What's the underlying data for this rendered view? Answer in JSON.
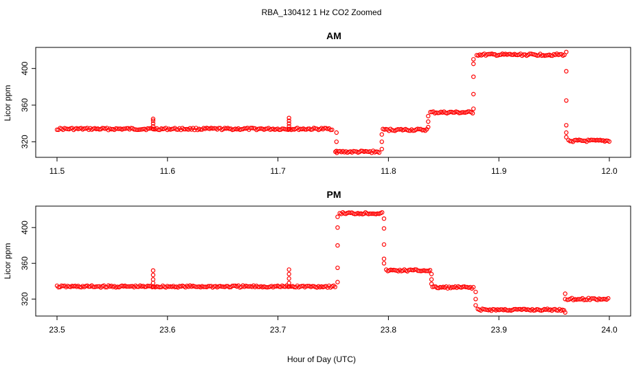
{
  "title": "RBA_130412  1 Hz CO2 Zoomed",
  "xlabel": "Hour of Day (UTC)",
  "colors": {
    "points": "#ff0000",
    "axes": "#000000"
  },
  "chart_data": [
    {
      "type": "scatter",
      "title": "AM",
      "ylabel": "Licor ppm",
      "xlim": [
        11.5,
        12.0
      ],
      "ylim": [
        303,
        423
      ],
      "x_ticks": [
        "11.5",
        "11.6",
        "11.7",
        "11.8",
        "11.9",
        "12.0"
      ],
      "y_ticks": [
        "320",
        "360",
        "400"
      ],
      "segments": [
        {
          "x": [
            11.5,
            11.75
          ],
          "y": 334
        },
        {
          "x": [
            11.752,
            11.792
          ],
          "y": 309
        },
        {
          "x": [
            11.795,
            11.835
          ],
          "y": 333
        },
        {
          "x": [
            11.838,
            11.877
          ],
          "y": 352
        },
        {
          "x": [
            11.88,
            11.96
          ],
          "y": 415
        },
        {
          "x": [
            11.963,
            12.0
          ],
          "y": 321
        }
      ],
      "spikes": [
        {
          "x": 11.587,
          "y": [
            334,
            337,
            340,
            343,
            345
          ]
        },
        {
          "x": 11.71,
          "y": [
            334,
            337,
            340,
            343,
            346
          ]
        },
        {
          "x": 11.753,
          "y": [
            330,
            320,
            310
          ]
        },
        {
          "x": 11.794,
          "y": [
            312,
            320,
            328
          ]
        },
        {
          "x": 11.836,
          "y": [
            336,
            342,
            348
          ]
        },
        {
          "x": 11.877,
          "y": [
            356,
            372,
            391,
            405,
            410
          ]
        },
        {
          "x": 11.961,
          "y": [
            418,
            397,
            365,
            338,
            330,
            325
          ]
        }
      ]
    },
    {
      "type": "scatter",
      "title": "PM",
      "ylabel": "Licor ppm",
      "xlim": [
        23.5,
        24.0
      ],
      "ylim": [
        301,
        424
      ],
      "x_ticks": [
        "23.5",
        "23.6",
        "23.7",
        "23.8",
        "23.9",
        "24.0"
      ],
      "y_ticks": [
        "320",
        "360",
        "400"
      ],
      "segments": [
        {
          "x": [
            23.5,
            23.753
          ],
          "y": 334
        },
        {
          "x": [
            23.756,
            23.795
          ],
          "y": 416
        },
        {
          "x": [
            23.798,
            23.838
          ],
          "y": 352
        },
        {
          "x": [
            23.84,
            23.878
          ],
          "y": 333
        },
        {
          "x": [
            23.881,
            23.959
          ],
          "y": 308
        },
        {
          "x": [
            23.962,
            24.0
          ],
          "y": 320
        }
      ],
      "spikes": [
        {
          "x": 23.587,
          "y": [
            334,
            338,
            342,
            347,
            352
          ]
        },
        {
          "x": 23.71,
          "y": [
            334,
            338,
            343,
            348,
            353
          ]
        },
        {
          "x": 23.754,
          "y": [
            339,
            355,
            380,
            400,
            412
          ]
        },
        {
          "x": 23.796,
          "y": [
            410,
            399,
            381,
            365,
            360
          ]
        },
        {
          "x": 23.839,
          "y": [
            348,
            342,
            337
          ]
        },
        {
          "x": 23.879,
          "y": [
            328,
            320,
            313
          ]
        },
        {
          "x": 23.96,
          "y": [
            305,
            320,
            326
          ]
        }
      ]
    }
  ]
}
